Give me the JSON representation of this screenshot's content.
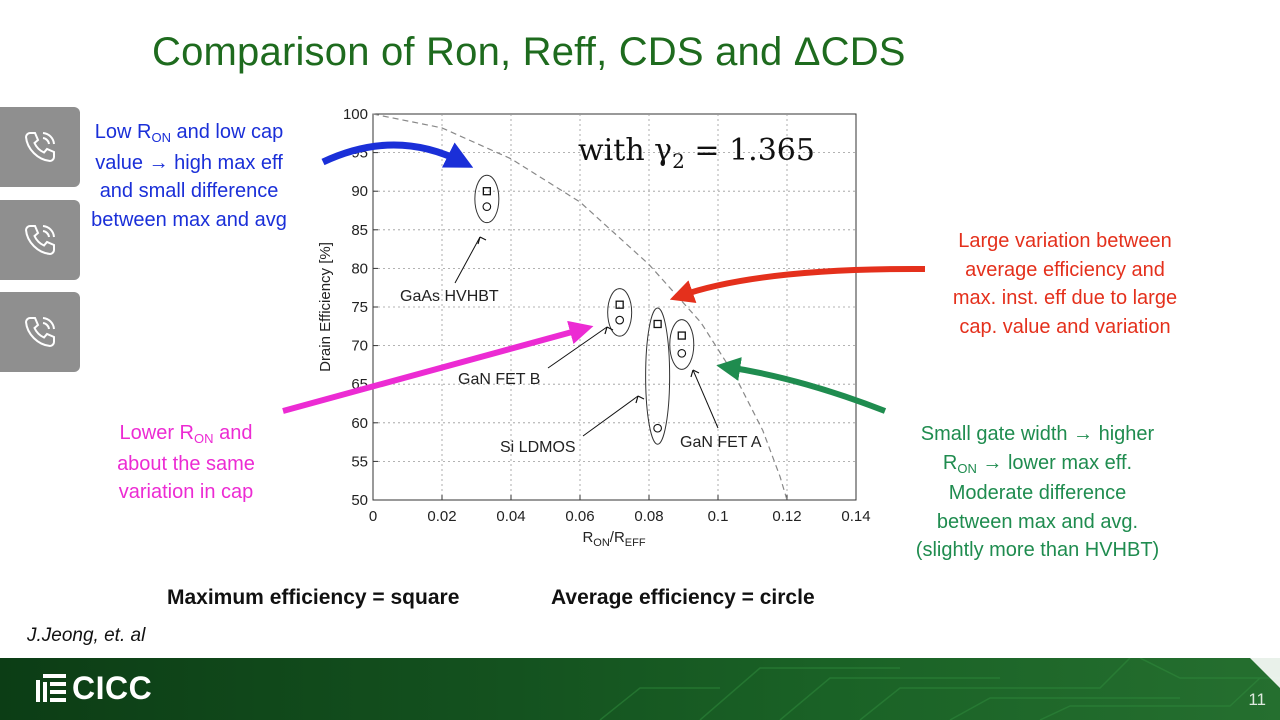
{
  "slide": {
    "title": "Comparison of Ron, Reff, CDS and ΔCDS",
    "citation": "J.Jeong, et. al",
    "legend_max": "Maximum efficiency = square",
    "legend_avg": "Average efficiency = circle",
    "logo_text": "CICC",
    "page_number": "11"
  },
  "sidebar": {
    "buttons": [
      {
        "icon": "phone-call-icon"
      },
      {
        "icon": "phone-call-icon"
      },
      {
        "icon": "phone-call-icon"
      }
    ]
  },
  "annotations": {
    "blue": {
      "color": "#1a2fd8",
      "l1a": "Low R",
      "l1sub": "ON",
      "l1b": " and low cap",
      "l2": "value → high max eff",
      "l3": "and small difference",
      "l4": "between max and avg"
    },
    "red": {
      "color": "#e4301c",
      "l1": "Large variation between",
      "l2": "average efficiency and",
      "l3": "max. inst. eff due to large",
      "l4": "cap. value and variation"
    },
    "magenta": {
      "color": "#ec2bd3",
      "l1a": "Lower R",
      "l1sub": "ON",
      "l1b": " and",
      "l2": "about the same",
      "l3": "variation in cap"
    },
    "green": {
      "color": "#1f8c4f",
      "l1": "Small gate width → higher",
      "l2a": "R",
      "l2sub": "ON",
      "l2b": " → lower max eff.",
      "l3": "Moderate difference",
      "l4": "between max and avg.",
      "l5": "(slightly more than HVHBT)"
    }
  },
  "chart_data": {
    "type": "scatter",
    "ylabel": "Drain Efficiency [%]",
    "xlabel_main": "R",
    "xlabel_sub1": "ON",
    "xlabel_slash": "/R",
    "xlabel_sub2": "EFF",
    "annotation_text": "with γ",
    "annotation_sub": "2",
    "annotation_rest": " = 1.365",
    "xlim": [
      0,
      0.14
    ],
    "ylim": [
      50,
      100
    ],
    "x_ticks": [
      0,
      0.02,
      0.04,
      0.06,
      0.08,
      0.1,
      0.12,
      0.14
    ],
    "x_tick_labels": [
      "0",
      "0.02",
      "0.04",
      "0.06",
      "0.08",
      "0.1",
      "0.12",
      "0.14"
    ],
    "y_ticks": [
      50,
      55,
      60,
      65,
      70,
      75,
      80,
      85,
      90,
      95,
      100
    ],
    "y_tick_labels": [
      "50",
      "55",
      "60",
      "65",
      "70",
      "75",
      "80",
      "85",
      "90",
      "95",
      "100"
    ],
    "grid": true,
    "devices": [
      {
        "name": "GaAs HVHBT",
        "x": 0.033,
        "max_eff": 90.0,
        "avg_eff": 88.0
      },
      {
        "name": "GaN FET B",
        "x": 0.0715,
        "max_eff": 75.3,
        "avg_eff": 73.3
      },
      {
        "name": "Si LDMOS",
        "x": 0.0825,
        "max_eff": 72.8,
        "avg_eff": 59.3
      },
      {
        "name": "GaN FET A",
        "x": 0.0895,
        "max_eff": 71.3,
        "avg_eff": 69.0
      }
    ],
    "theory_curve": {
      "style": "dashed",
      "gamma2": 1.365
    }
  }
}
